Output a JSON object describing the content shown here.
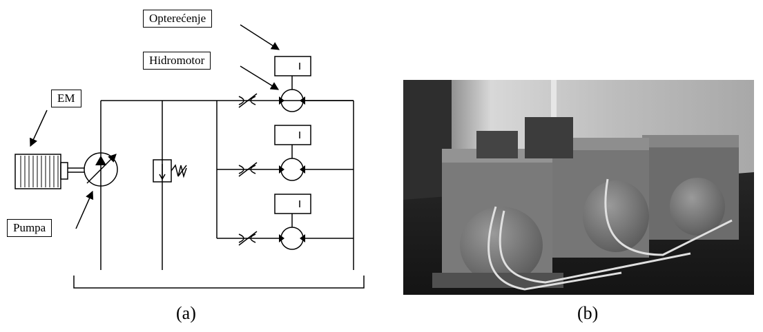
{
  "diagram": {
    "labels": {
      "load": "Opterećenje",
      "hydromotor": "Hidromotor",
      "em": "EM",
      "pump": "Pumpa"
    },
    "caption": "(a)"
  },
  "photo": {
    "caption": "(b)"
  }
}
